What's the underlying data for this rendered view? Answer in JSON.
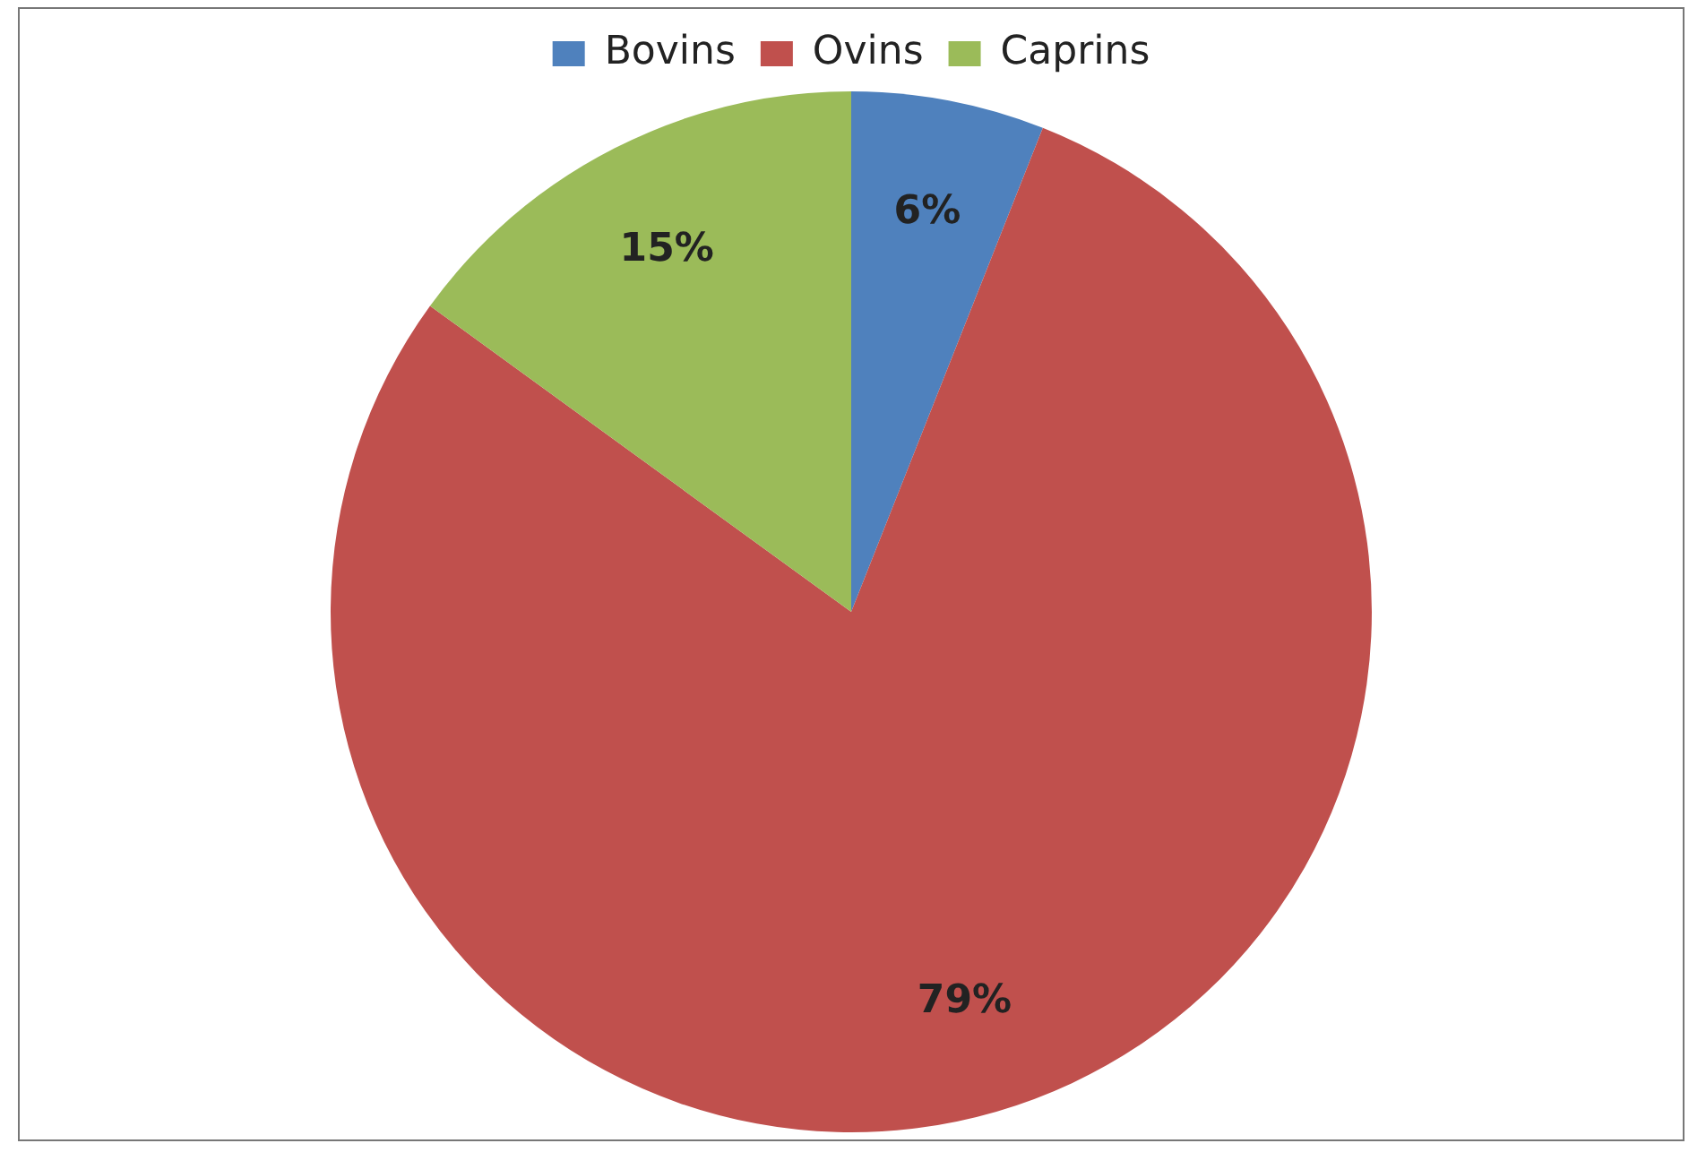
{
  "chart_data": {
    "type": "pie",
    "categories": [
      "Bovins",
      "Ovins",
      "Caprins"
    ],
    "values": [
      6,
      79,
      15
    ],
    "colors": [
      "#4f81bd",
      "#c0504d",
      "#9bbb59"
    ],
    "value_labels": [
      "6%",
      "79%",
      "15%"
    ],
    "legend": "top"
  }
}
